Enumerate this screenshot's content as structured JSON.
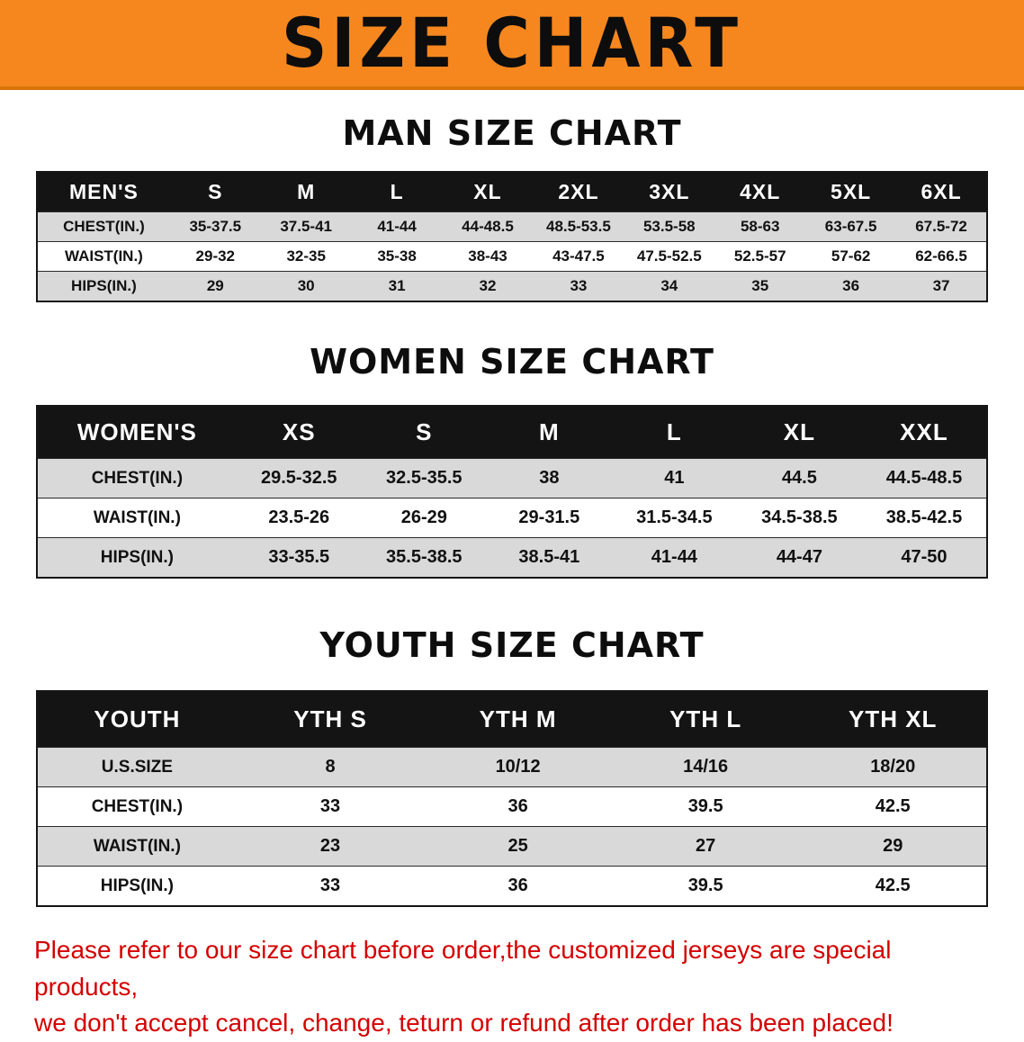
{
  "banner": {
    "title": "SIZE CHART",
    "bg_color": "#F6871F",
    "text_color": "#0D0D0D"
  },
  "colors": {
    "table_header_bg": "#141414",
    "table_row_alt_bg": "#D9D9D9",
    "disclaimer_red": "#D40000"
  },
  "sections": [
    {
      "heading": "MAN SIZE CHART",
      "table": {
        "header": [
          "MEN'S",
          "S",
          "M",
          "L",
          "XL",
          "2XL",
          "3XL",
          "4XL",
          "5XL",
          "6XL"
        ],
        "rows": [
          {
            "label": "CHEST(IN.)",
            "values": [
              "35-37.5",
              "37.5-41",
              "41-44",
              "44-48.5",
              "48.5-53.5",
              "53.5-58",
              "58-63",
              "63-67.5",
              "67.5-72"
            ]
          },
          {
            "label": "WAIST(IN.)",
            "values": [
              "29-32",
              "32-35",
              "35-38",
              "38-43",
              "43-47.5",
              "47.5-52.5",
              "52.5-57",
              "57-62",
              "62-66.5"
            ]
          },
          {
            "label": "HIPS(IN.)",
            "values": [
              "29",
              "30",
              "31",
              "32",
              "33",
              "34",
              "35",
              "36",
              "37"
            ]
          }
        ]
      }
    },
    {
      "heading": "WOMEN SIZE CHART",
      "table": {
        "header": [
          "WOMEN'S",
          "XS",
          "S",
          "M",
          "L",
          "XL",
          "XXL"
        ],
        "rows": [
          {
            "label": "CHEST(IN.)",
            "values": [
              "29.5-32.5",
              "32.5-35.5",
              "38",
              "41",
              "44.5",
              "44.5-48.5"
            ]
          },
          {
            "label": "WAIST(IN.)",
            "values": [
              "23.5-26",
              "26-29",
              "29-31.5",
              "31.5-34.5",
              "34.5-38.5",
              "38.5-42.5"
            ]
          },
          {
            "label": "HIPS(IN.)",
            "values": [
              "33-35.5",
              "35.5-38.5",
              "38.5-41",
              "41-44",
              "44-47",
              "47-50"
            ]
          }
        ]
      }
    },
    {
      "heading": "YOUTH SIZE CHART",
      "table": {
        "header": [
          "YOUTH",
          "YTH S",
          "YTH M",
          "YTH L",
          "YTH XL"
        ],
        "rows": [
          {
            "label": "U.S.SIZE",
            "values": [
              "8",
              "10/12",
              "14/16",
              "18/20"
            ]
          },
          {
            "label": "CHEST(IN.)",
            "values": [
              "33",
              "36",
              "39.5",
              "42.5"
            ]
          },
          {
            "label": "WAIST(IN.)",
            "values": [
              "23",
              "25",
              "27",
              "29"
            ]
          },
          {
            "label": "HIPS(IN.)",
            "values": [
              "33",
              "36",
              "39.5",
              "42.5"
            ]
          }
        ]
      }
    }
  ],
  "disclaimer": {
    "line1": "Please refer to our size chart before order,the customized jerseys are special products,",
    "line2": "we don't accept cancel, change, teturn or refund after order has been placed!"
  }
}
